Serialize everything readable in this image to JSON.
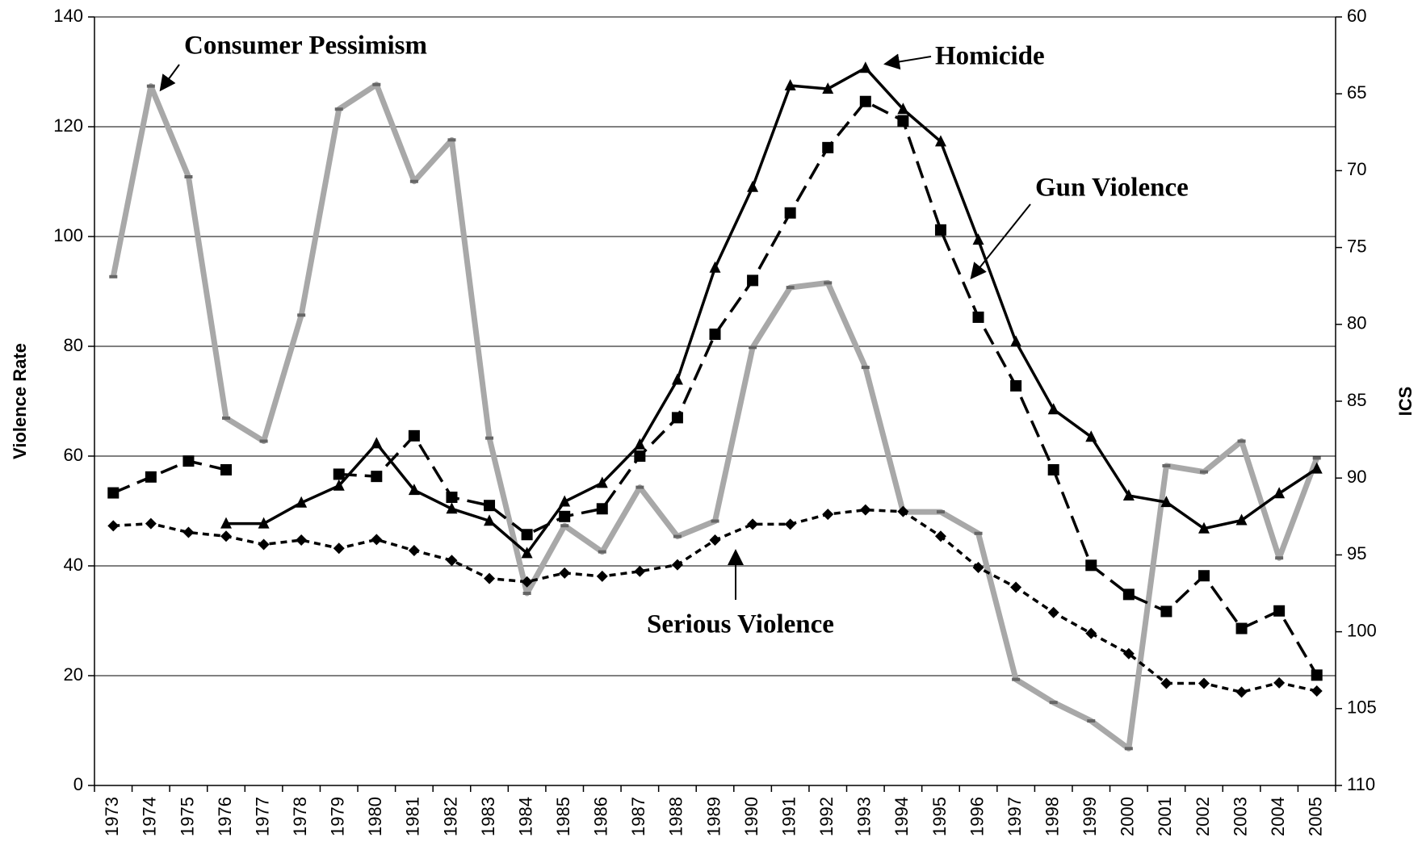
{
  "chart_data": {
    "type": "line",
    "categories": [
      "1973",
      "1974",
      "1975",
      "1976",
      "1977",
      "1978",
      "1979",
      "1980",
      "1981",
      "1982",
      "1983",
      "1984",
      "1985",
      "1986",
      "1987",
      "1988",
      "1989",
      "1990",
      "1991",
      "1992",
      "1993",
      "1994",
      "1995",
      "1996",
      "1997",
      "1998",
      "1999",
      "2000",
      "2001",
      "2002",
      "2003",
      "2004",
      "2005"
    ],
    "y_label": "Violence Rate",
    "y2_label": "ICS",
    "ylim": [
      0,
      140
    ],
    "yticks": [
      0,
      20,
      40,
      60,
      80,
      100,
      120,
      140
    ],
    "y2lim": [
      110,
      60
    ],
    "y2ticks": [
      110,
      105,
      100,
      95,
      90,
      85,
      80,
      75,
      70,
      65,
      60
    ],
    "grid": true,
    "series": [
      {
        "name": "Homicide",
        "color": "#000000",
        "dash": "solid",
        "marker": "triangle",
        "values": [
          null,
          null,
          null,
          47.7,
          47.7,
          51.5,
          54.6,
          62.3,
          53.8,
          50.4,
          48.2,
          42.3,
          51.7,
          55.1,
          62.1,
          73.9,
          94.3,
          109,
          127.5,
          126.9,
          130.7,
          123.2,
          117.3,
          99.4,
          80.8,
          68.5,
          63.5,
          52.8,
          51.6,
          46.8,
          48.3,
          53.2,
          57.7
        ]
      },
      {
        "name": "Gun Violence",
        "color": "#000000",
        "dash": "dashed",
        "marker": "square",
        "values": [
          53.3,
          56.2,
          59.1,
          57.5,
          null,
          null,
          56.7,
          56.3,
          63.7,
          52.5,
          51,
          45.7,
          49,
          50.4,
          60,
          67,
          82.2,
          92,
          104.3,
          116.2,
          124.6,
          121.1,
          101.2,
          85.3,
          72.8,
          57.5,
          40.1,
          34.8,
          31.7,
          38.2,
          28.6,
          31.8,
          20.1
        ]
      },
      {
        "name": "Serious Violence",
        "color": "#000000",
        "dash": "dotted",
        "marker": "diamond",
        "values": [
          47.3,
          47.7,
          46.1,
          45.4,
          43.9,
          44.7,
          43.2,
          44.8,
          42.8,
          41,
          37.7,
          37.1,
          38.7,
          38.1,
          39,
          40.2,
          44.7,
          47.6,
          47.6,
          49.4,
          50.2,
          49.9,
          45.4,
          39.7,
          36.1,
          31.5,
          27.7,
          24,
          18.6,
          18.6,
          17,
          18.7,
          17.2
        ]
      },
      {
        "name": "Consumer Pessimism",
        "color": "#a8a8a8",
        "dash": "solid",
        "marker": "dash",
        "axis": "y2",
        "values": [
          76.9,
          64.5,
          70.4,
          86.1,
          87.6,
          79.4,
          66.0,
          64.4,
          70.7,
          68.0,
          87.4,
          97.5,
          93.1,
          94.8,
          90.6,
          93.8,
          92.8,
          81.5,
          77.6,
          77.3,
          82.8,
          92.2,
          92.2,
          93.6,
          103.1,
          104.6,
          105.8,
          107.6,
          89.2,
          89.6,
          87.6,
          95.2,
          88.7
        ]
      }
    ]
  }
}
